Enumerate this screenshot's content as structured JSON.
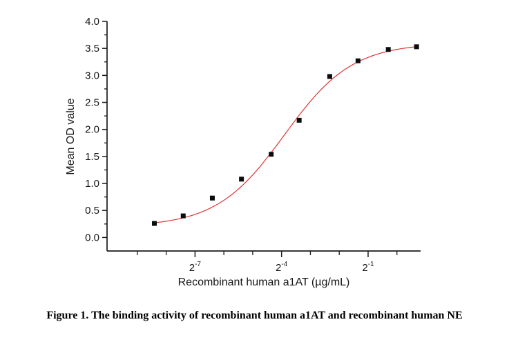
{
  "figure": {
    "caption": "Figure 1. The binding activity of recombinant human a1AT and recombinant human NE"
  },
  "chart_data": {
    "type": "scatter",
    "title": "",
    "xlabel": "Recombinant human a1AT (µg/mL)",
    "ylabel": "Mean OD value",
    "x_scale": "log2",
    "grid": false,
    "legend": "none",
    "x_axis": {
      "lim_exponents": [
        -10.05,
        0.82
      ],
      "major_ticks": [
        {
          "exponent": -7,
          "base": "2",
          "sup": "-7"
        },
        {
          "exponent": -4,
          "base": "2",
          "sup": "-4"
        },
        {
          "exponent": -1,
          "base": "2",
          "sup": "-1"
        }
      ],
      "minor_tick_exponents": [
        -9,
        -8,
        -6,
        -5,
        -3,
        -2,
        0
      ]
    },
    "y_axis": {
      "lim": [
        -0.25,
        4.0
      ],
      "major_ticks": [
        {
          "value": 0.0,
          "label": "0.0"
        },
        {
          "value": 0.5,
          "label": "0.5"
        },
        {
          "value": 1.0,
          "label": "1.0"
        },
        {
          "value": 1.5,
          "label": "1.5"
        },
        {
          "value": 2.0,
          "label": "2.0"
        },
        {
          "value": 2.5,
          "label": "2.5"
        },
        {
          "value": 3.0,
          "label": "3.0"
        },
        {
          "value": 3.5,
          "label": "3.5"
        },
        {
          "value": 4.0,
          "label": "4.0"
        }
      ],
      "minor_tick_values": [
        0.25,
        0.75,
        1.25,
        1.75,
        2.25,
        2.75,
        3.25,
        3.75
      ]
    },
    "series": [
      {
        "name": "Mean OD value",
        "marker": "black-square",
        "points": [
          {
            "x_exponent": -8.41,
            "od": 0.26
          },
          {
            "x_exponent": -7.41,
            "od": 0.4
          },
          {
            "x_exponent": -6.4,
            "od": 0.73
          },
          {
            "x_exponent": -5.39,
            "od": 1.08
          },
          {
            "x_exponent": -4.36,
            "od": 1.54
          },
          {
            "x_exponent": -3.39,
            "od": 2.17
          },
          {
            "x_exponent": -2.33,
            "od": 2.98
          },
          {
            "x_exponent": -1.35,
            "od": 3.27
          },
          {
            "x_exponent": -0.3,
            "od": 3.48
          },
          {
            "x_exponent": 0.68,
            "od": 3.53
          }
        ]
      }
    ],
    "fit_curve": {
      "model": "4PL-logistic",
      "bottom": 0.2,
      "top": 3.6,
      "x0_exponent": -3.9,
      "slope": 0.85,
      "x_range_exponents": [
        -8.45,
        0.72
      ]
    },
    "colors": {
      "axis": "#1a1a1a",
      "marker": "#0c0c0c",
      "curve": "#e23232"
    }
  }
}
